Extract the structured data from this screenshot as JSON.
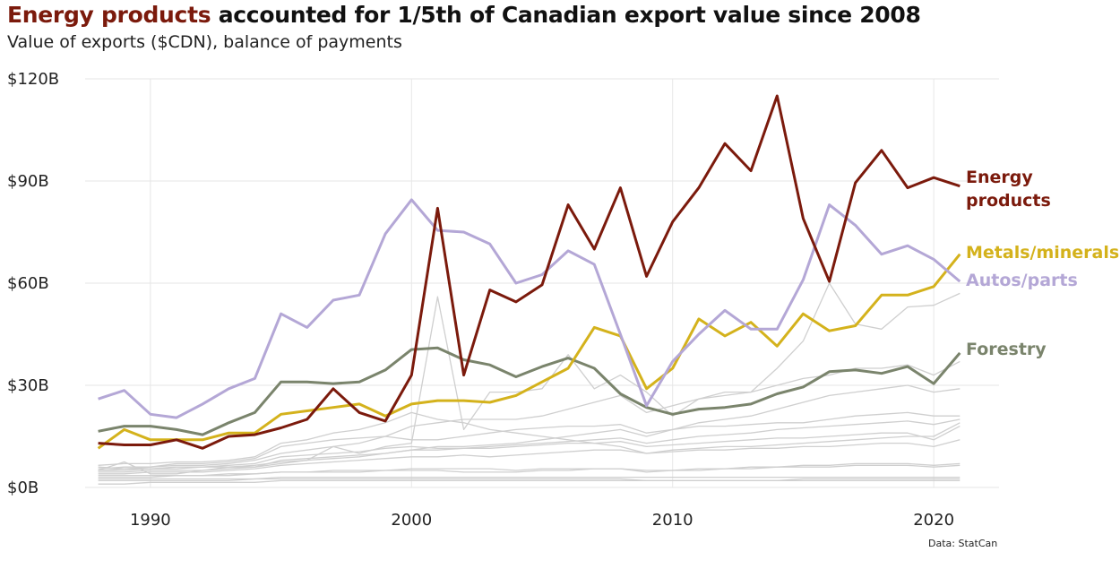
{
  "header": {
    "title_highlight": "Energy products",
    "title_rest": " accounted for 1/5th of Canadian export value since 2008",
    "subtitle": "Value of exports ($CDN), balance of payments",
    "source": "Data: StatCan"
  },
  "chart_data": {
    "type": "line",
    "title": "Energy products accounted for 1/5th of Canadian export value since 2008",
    "subtitle": "Value of exports ($CDN), balance of payments",
    "xlabel": "",
    "ylabel": "",
    "xlim": [
      1987.5,
      2022.5
    ],
    "ylim": [
      0,
      120
    ],
    "y_unit": "billions CDN",
    "x_ticks": [
      1990,
      2000,
      2010,
      2020
    ],
    "x_tick_labels": [
      "1990",
      "2000",
      "2010",
      "2020"
    ],
    "y_ticks": [
      0,
      30,
      60,
      90,
      120
    ],
    "y_tick_labels": [
      "$0B",
      "$30B",
      "$60B",
      "$90B",
      "$120B"
    ],
    "grid": true,
    "legend": "direct labels at right end of highlighted lines",
    "x": [
      1988,
      1989,
      1990,
      1991,
      1992,
      1993,
      1994,
      1995,
      1996,
      1997,
      1998,
      1999,
      2000,
      2001,
      2002,
      2003,
      2004,
      2005,
      2006,
      2007,
      2008,
      2009,
      2010,
      2011,
      2012,
      2013,
      2014,
      2015,
      2016,
      2017,
      2018,
      2019,
      2020,
      2021
    ],
    "series": [
      {
        "name": "Energy products",
        "color": "#7b1a0c",
        "highlight": true,
        "label_lines": [
          "Energy",
          "products"
        ],
        "values": [
          13,
          12.5,
          12.5,
          14,
          11.5,
          15,
          15.5,
          17.5,
          20,
          29,
          22,
          19.5,
          33,
          82,
          33,
          58,
          54.5,
          59.5,
          83,
          70,
          88,
          62,
          78,
          88,
          101,
          93,
          115,
          79,
          60.5,
          89.5,
          99,
          88,
          91,
          88.5
        ]
      },
      {
        "name": "Metals/minerals",
        "color": "#d4b21c",
        "highlight": true,
        "label_lines": [
          "Metals/minerals"
        ],
        "values": [
          11.5,
          17,
          14,
          14,
          14,
          16,
          16,
          21.5,
          22.5,
          23.5,
          24.5,
          21,
          24.5,
          25.5,
          25.5,
          25,
          27,
          31,
          35,
          47,
          44.5,
          29,
          35,
          49.5,
          44.5,
          48.5,
          41.5,
          51,
          46,
          47.5,
          56.5,
          56.5,
          59,
          68.5
        ]
      },
      {
        "name": "Autos/parts",
        "color": "#b4a7d6",
        "highlight": true,
        "label_lines": [
          "Autos/parts"
        ],
        "values": [
          26,
          28.5,
          21.5,
          20.5,
          24.5,
          29,
          32,
          51,
          47,
          55,
          56.5,
          74.5,
          84.5,
          75.5,
          75,
          71.5,
          60,
          62.5,
          69.5,
          65.5,
          45,
          24,
          37,
          45,
          52,
          46.5,
          46.5,
          61,
          83,
          77,
          68.5,
          71,
          67,
          60.5
        ]
      },
      {
        "name": "Forestry",
        "color": "#7a846c",
        "highlight": true,
        "label_lines": [
          "Forestry"
        ],
        "values": [
          16.5,
          18,
          18,
          17,
          15.5,
          19,
          22,
          31,
          31,
          30.5,
          31,
          34.5,
          40.5,
          41,
          37.5,
          36,
          32.5,
          35.5,
          38,
          35,
          27.5,
          23.5,
          21.5,
          23,
          23.5,
          24.5,
          27.5,
          29.5,
          34,
          34.5,
          33.5,
          35.5,
          30.5,
          39.5
        ]
      },
      {
        "color": "#cfcfcf",
        "highlight": false,
        "values": [
          6,
          5.5,
          6,
          7,
          7,
          7.5,
          8.5,
          12,
          13,
          14,
          14.5,
          15,
          14,
          14,
          15,
          16,
          17,
          17.5,
          18,
          18,
          18.5,
          16,
          17,
          18,
          18,
          18.5,
          19,
          19,
          20,
          21,
          21.5,
          22,
          21,
          21
        ]
      },
      {
        "color": "#cfcfcf",
        "highlight": false,
        "values": [
          5,
          5.5,
          5.5,
          6,
          6,
          6.5,
          7,
          9,
          9.5,
          10,
          10.5,
          11.5,
          12,
          11.5,
          11.5,
          11.5,
          12,
          12.5,
          13,
          13,
          13.5,
          12,
          12.5,
          13,
          13.5,
          14,
          14.5,
          14.5,
          15,
          15.5,
          16,
          16,
          14,
          18
        ]
      },
      {
        "color": "#cfcfcf",
        "highlight": false,
        "values": [
          4,
          4,
          4.5,
          4.5,
          4.5,
          5,
          5.5,
          6.5,
          7,
          7.5,
          8,
          8.5,
          9,
          9,
          9.5,
          9,
          9.5,
          10,
          10.5,
          11,
          11,
          10,
          10.5,
          11,
          11,
          11.5,
          11.5,
          12,
          12,
          12.5,
          13,
          13,
          12,
          14
        ]
      },
      {
        "color": "#cfcfcf",
        "highlight": false,
        "values": [
          3,
          3,
          3,
          3.5,
          3.5,
          3.5,
          4,
          4.5,
          4.5,
          5,
          5,
          5,
          5.5,
          5.5,
          5.5,
          5.5,
          5,
          5.5,
          5.5,
          5.5,
          5.5,
          4.5,
          5,
          5.5,
          5.5,
          6,
          6,
          6.5,
          6.5,
          7,
          7,
          7,
          6.5,
          7
        ]
      },
      {
        "color": "#cfcfcf",
        "highlight": false,
        "values": [
          2,
          2,
          2,
          2,
          2,
          2,
          2.5,
          2.5,
          2.5,
          2.5,
          2.5,
          2.5,
          2.5,
          2.5,
          2.5,
          2.5,
          2.5,
          2.5,
          2.5,
          2.5,
          2.5,
          2,
          2,
          2,
          2,
          2,
          2,
          2.5,
          2.5,
          2.5,
          2.5,
          2.5,
          2.5,
          2.5
        ]
      },
      {
        "color": "#cfcfcf",
        "highlight": false,
        "values": [
          5,
          7.5,
          4,
          4,
          5,
          6,
          6,
          7,
          8,
          12,
          10,
          12,
          13,
          56,
          17,
          28,
          28,
          29,
          39,
          29,
          33,
          28,
          21,
          26,
          28,
          28,
          35,
          43,
          60,
          48,
          46.5,
          53,
          53.5,
          57
        ]
      },
      {
        "color": "#cfcfcf",
        "highlight": false,
        "values": [
          5.5,
          6,
          6,
          6.5,
          6.5,
          7,
          8,
          10,
          11,
          12,
          13,
          15,
          18,
          19,
          20,
          20,
          20,
          21,
          23,
          25,
          27,
          22,
          24,
          26,
          27,
          28,
          30,
          32,
          33,
          35,
          35,
          36,
          33,
          37
        ]
      },
      {
        "color": "#cfcfcf",
        "highlight": false,
        "values": [
          6.5,
          7,
          7,
          7.5,
          7.5,
          8,
          9,
          13,
          14,
          16,
          17,
          19,
          22,
          20,
          19,
          17,
          16,
          15,
          14,
          13,
          12,
          10,
          11,
          11.5,
          12,
          12,
          12.5,
          13,
          13.5,
          14,
          14.5,
          15,
          15,
          19
        ]
      },
      {
        "color": "#cfcfcf",
        "highlight": false,
        "values": [
          4.5,
          4.5,
          5,
          5,
          5,
          5.5,
          6,
          8,
          8.5,
          9,
          9.5,
          10,
          11,
          11,
          11.5,
          12,
          12.5,
          13,
          13.5,
          14,
          14.5,
          13,
          14,
          15,
          15.5,
          16,
          17,
          17.5,
          18,
          18.5,
          19,
          19.5,
          18.5,
          20
        ]
      },
      {
        "color": "#cfcfcf",
        "highlight": false,
        "values": [
          3.5,
          3.5,
          3.5,
          3.5,
          3.5,
          4,
          4,
          4.5,
          4.5,
          4.5,
          4.5,
          5,
          5,
          5,
          4.5,
          4.5,
          4.5,
          5,
          5,
          5.5,
          5.5,
          5,
          5,
          5,
          5.5,
          5.5,
          6,
          6,
          6,
          6.5,
          6.5,
          6.5,
          6,
          6.5
        ]
      },
      {
        "color": "#cfcfcf",
        "highlight": false,
        "values": [
          2.5,
          2.5,
          2.5,
          2.5,
          2.5,
          2.5,
          2.5,
          3,
          3,
          3,
          3,
          3,
          3,
          3,
          3,
          3,
          3,
          3,
          3,
          3,
          3,
          3,
          3,
          3,
          3,
          3,
          3,
          3,
          3,
          3,
          3,
          3,
          3,
          3
        ]
      },
      {
        "color": "#cfcfcf",
        "highlight": false,
        "values": [
          1,
          1,
          1.5,
          1.5,
          1.5,
          1.5,
          1.5,
          2,
          2,
          2,
          2,
          2,
          2,
          2,
          2,
          2,
          2,
          2,
          2,
          2,
          2,
          2,
          2,
          2,
          2,
          2,
          2,
          2,
          2,
          2,
          2,
          2,
          2,
          2
        ]
      },
      {
        "color": "#cfcfcf",
        "highlight": false,
        "values": [
          5,
          5,
          5.5,
          5.5,
          6,
          6,
          6.5,
          7.5,
          8,
          8.5,
          9,
          10,
          11,
          12,
          12,
          12.5,
          13,
          14,
          15,
          16,
          17,
          15,
          17,
          19,
          20,
          21,
          23,
          25,
          27,
          28,
          29,
          30,
          28,
          29
        ]
      }
    ]
  }
}
